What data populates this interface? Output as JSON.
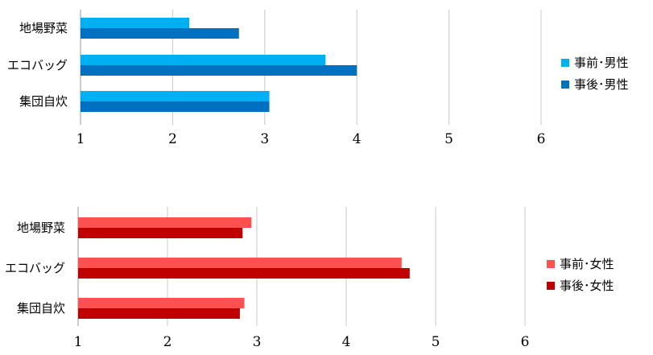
{
  "chart_data": [
    {
      "type": "bar",
      "orientation": "horizontal",
      "categories": [
        "地場野菜",
        "エコバッグ",
        "集団自炊"
      ],
      "series": [
        {
          "name": "事前･男性",
          "color": "#00b0f0",
          "values": [
            2.18,
            3.66,
            3.05
          ]
        },
        {
          "name": "事後･男性",
          "color": "#0070c0",
          "values": [
            2.72,
            4.0,
            3.05
          ]
        }
      ],
      "x_ticks": [
        "1",
        "2",
        "3",
        "4",
        "5",
        "6"
      ],
      "xlim": [
        1,
        6
      ],
      "grid": true,
      "legend_position": "right"
    },
    {
      "type": "bar",
      "orientation": "horizontal",
      "categories": [
        "地場野菜",
        "エコバッグ",
        "集団自炊"
      ],
      "series": [
        {
          "name": "事前･女性",
          "color": "#ff5050",
          "values": [
            2.94,
            4.62,
            2.86
          ]
        },
        {
          "name": "事後･女性",
          "color": "#c00000",
          "values": [
            2.84,
            4.71,
            2.81
          ]
        }
      ],
      "x_ticks": [
        "1",
        "2",
        "3",
        "4",
        "5",
        "6"
      ],
      "xlim": [
        1,
        6
      ],
      "grid": true,
      "legend_position": "right"
    }
  ]
}
